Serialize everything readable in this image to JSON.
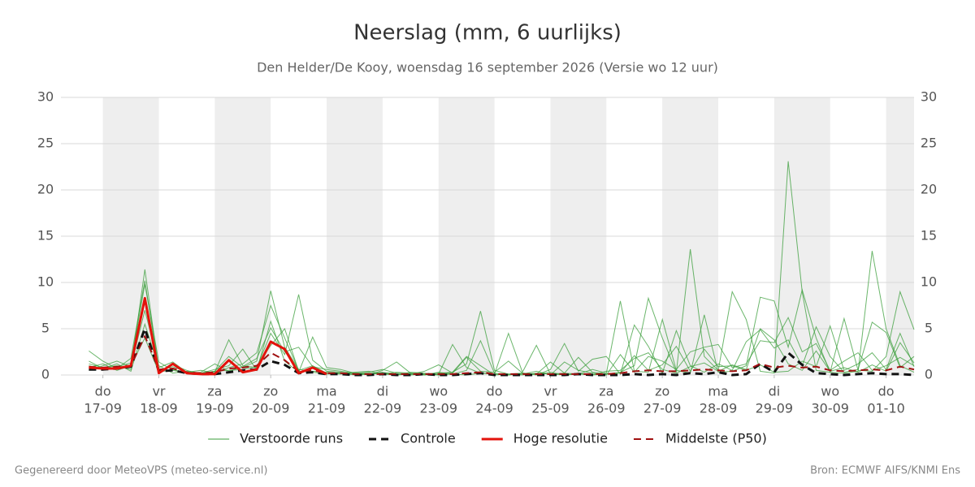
{
  "chart_data": {
    "type": "line",
    "title": "Neerslag (mm, 6 uurlijks)",
    "subtitle": "Den Helder/De Kooy, woensdag 16 september 2026 (Versie wo 12 uur)",
    "footer_left": "Gegenereerd door MeteoVPS (meteo-service.nl)",
    "footer_right": "Bron: ECMWF AIFS/KNMI Ens",
    "x": [
      -6,
      0,
      6,
      12,
      18,
      24,
      30,
      36,
      42,
      48,
      54,
      60,
      66,
      72,
      78,
      84,
      90,
      96,
      102,
      108,
      114,
      120,
      126,
      132,
      138,
      144,
      150,
      156,
      162,
      168,
      174,
      180,
      186,
      192,
      198,
      204,
      210,
      216,
      222,
      228,
      234,
      240,
      246,
      252,
      258,
      264,
      270,
      276,
      282,
      288,
      294,
      300,
      306,
      312,
      318,
      324,
      330,
      336,
      342,
      348
    ],
    "xlim": [
      -18,
      348
    ],
    "xticks": [
      {
        "value": 0,
        "label": "do"
      },
      {
        "value": 24,
        "label": "vr"
      },
      {
        "value": 48,
        "label": "za"
      },
      {
        "value": 72,
        "label": "zo"
      },
      {
        "value": 96,
        "label": "ma"
      },
      {
        "value": 120,
        "label": "di"
      },
      {
        "value": 144,
        "label": "wo"
      },
      {
        "value": 168,
        "label": "do"
      },
      {
        "value": 192,
        "label": "vr"
      },
      {
        "value": 216,
        "label": "za"
      },
      {
        "value": 240,
        "label": "zo"
      },
      {
        "value": 264,
        "label": "ma"
      },
      {
        "value": 288,
        "label": "di"
      },
      {
        "value": 312,
        "label": "wo"
      },
      {
        "value": 336,
        "label": "do"
      }
    ],
    "xtick_sublabels": [
      "17-09",
      "18-09",
      "19-09",
      "20-09",
      "21-09",
      "22-09",
      "23-09",
      "24-09",
      "25-09",
      "26-09",
      "27-09",
      "28-09",
      "29-09",
      "30-09",
      "01-10"
    ],
    "ylim": [
      0,
      30
    ],
    "yticks": [
      0,
      5,
      10,
      15,
      20,
      25,
      30
    ],
    "grid": true,
    "ensemble": {
      "name": "Verstoorde runs",
      "color": "#3a9e3a",
      "runs": [
        [
          1.2,
          0.8,
          1.0,
          0.6,
          11.4,
          0.5,
          0.9,
          0.3,
          0.2,
          0.4,
          2.0,
          0.8,
          1.5,
          9.1,
          3.0,
          0.6,
          0.4,
          0.3,
          0.2,
          0.2,
          0.1,
          0.3,
          0.1,
          0.0,
          0.1,
          0.0,
          0.3,
          1.2,
          6.9,
          0.5,
          0.1,
          0.0,
          0.2,
          0.1,
          0.0,
          0.2,
          0.0,
          0.1,
          0.3,
          1.0,
          8.3,
          4.0,
          0.3,
          13.6,
          2.0,
          0.5,
          9.0,
          6.0,
          0.4,
          0.2,
          23.1,
          9.0,
          0.5,
          0.3,
          0.2,
          0.4,
          13.4,
          5.0,
          1.0,
          0.3
        ],
        [
          2.6,
          1.5,
          0.7,
          1.8,
          10.2,
          0.4,
          1.1,
          0.5,
          0.1,
          0.3,
          3.8,
          1.0,
          0.8,
          4.5,
          2.2,
          8.7,
          1.6,
          0.4,
          0.3,
          0.1,
          0.2,
          0.1,
          0.3,
          0.2,
          0.0,
          0.1,
          3.3,
          0.8,
          0.2,
          0.1,
          4.5,
          0.3,
          3.2,
          0.1,
          0.2,
          0.1,
          0.6,
          0.2,
          8.0,
          0.4,
          0.3,
          6.0,
          0.5,
          0.2,
          6.5,
          0.3,
          0.4,
          1.0,
          8.4,
          8.0,
          3.0,
          9.2,
          4.0,
          0.3,
          6.1,
          0.5,
          0.4,
          2.0,
          9.0,
          4.9
        ],
        [
          0.5,
          1.0,
          1.5,
          0.9,
          7.0,
          1.0,
          0.2,
          0.4,
          0.2,
          0.6,
          1.0,
          2.8,
          0.5,
          5.8,
          1.5,
          0.3,
          4.1,
          0.8,
          0.6,
          0.2,
          0.0,
          0.5,
          1.4,
          0.2,
          0.1,
          0.2,
          0.3,
          2.0,
          1.0,
          0.0,
          0.1,
          0.2,
          0.0,
          0.6,
          3.4,
          0.4,
          1.7,
          2.0,
          0.1,
          5.4,
          3.1,
          0.2,
          4.8,
          1.0,
          0.3,
          1.2,
          0.5,
          3.6,
          4.9,
          2.9,
          3.8,
          1.0,
          5.2,
          2.0,
          0.3,
          0.6,
          5.7,
          4.6,
          0.8,
          2.0
        ],
        [
          1.5,
          0.7,
          1.2,
          0.4,
          5.5,
          0.8,
          1.4,
          0.3,
          0.5,
          0.2,
          0.8,
          1.2,
          2.4,
          7.5,
          4.0,
          0.5,
          1.0,
          0.2,
          0.1,
          0.3,
          0.4,
          0.1,
          0.0,
          0.3,
          0.2,
          0.0,
          0.1,
          0.5,
          3.7,
          0.2,
          0.0,
          0.1,
          0.4,
          0.0,
          1.4,
          0.5,
          0.2,
          0.0,
          2.2,
          0.3,
          2.0,
          1.5,
          0.6,
          2.5,
          3.0,
          3.3,
          0.8,
          1.2,
          3.7,
          3.5,
          6.2,
          2.5,
          3.4,
          0.5,
          1.5,
          2.4,
          0.5,
          1.0,
          1.9,
          1.0
        ],
        [
          0.8,
          1.2,
          0.5,
          1.0,
          4.0,
          0.3,
          0.6,
          0.2,
          0.1,
          0.4,
          0.5,
          0.6,
          0.9,
          3.2,
          5.0,
          0.4,
          0.3,
          0.1,
          0.2,
          0.0,
          0.1,
          0.2,
          0.0,
          0.1,
          0.0,
          0.3,
          0.1,
          0.0,
          0.2,
          0.1,
          0.0,
          0.2,
          0.1,
          0.3,
          0.0,
          0.1,
          0.0,
          0.4,
          0.5,
          1.8,
          2.4,
          0.6,
          0.2,
          0.9,
          1.3,
          0.4,
          1.1,
          0.6,
          5.0,
          3.8,
          1.2,
          0.5,
          2.6,
          0.4,
          0.8,
          0.3,
          1.1,
          0.4,
          3.5,
          1.3
        ],
        [
          1.0,
          0.6,
          0.9,
          1.3,
          9.8,
          1.4,
          0.5,
          0.2,
          0.3,
          1.2,
          0.4,
          0.9,
          1.8,
          5.1,
          2.5,
          3.0,
          0.9,
          0.6,
          0.4,
          0.2,
          0.3,
          0.6,
          0.2,
          0.1,
          0.4,
          1.1,
          0.2,
          1.9,
          0.4,
          0.3,
          1.5,
          0.2,
          0.1,
          1.4,
          0.2,
          1.9,
          0.3,
          0.1,
          0.2,
          2.1,
          0.5,
          1.1,
          3.1,
          0.4,
          2.8,
          0.9,
          1.0,
          0.5,
          1.1,
          0.3,
          0.4,
          1.5,
          0.9,
          5.3,
          0.5,
          1.2,
          2.4,
          0.6,
          4.5,
          0.9
        ]
      ]
    },
    "series": [
      {
        "name": "Controle",
        "color": "#111111",
        "style": "dashed",
        "width": 3,
        "values": [
          0.6,
          0.6,
          0.7,
          0.9,
          5.0,
          0.4,
          0.5,
          0.2,
          0.1,
          0.1,
          0.3,
          0.5,
          0.6,
          1.5,
          1.1,
          0.2,
          0.3,
          0.1,
          0.1,
          0.0,
          0.0,
          0.1,
          0.0,
          0.0,
          0.1,
          0.0,
          0.0,
          0.1,
          0.2,
          0.0,
          0.0,
          0.0,
          0.0,
          0.0,
          0.0,
          0.1,
          0.0,
          0.0,
          0.0,
          0.1,
          0.0,
          0.1,
          0.0,
          0.2,
          0.1,
          0.3,
          0.0,
          0.1,
          1.2,
          0.3,
          2.4,
          1.1,
          0.2,
          0.1,
          0.0,
          0.1,
          0.2,
          0.1,
          0.1,
          0.0
        ]
      },
      {
        "name": "Hoge resolutie",
        "color": "#e3120b",
        "style": "solid",
        "width": 3,
        "values": [
          0.8,
          0.7,
          0.7,
          1.0,
          8.3,
          0.2,
          1.2,
          0.2,
          0.1,
          0.1,
          1.6,
          0.3,
          0.6,
          3.6,
          2.8,
          0.2,
          0.8,
          0.1,
          null,
          null,
          null,
          null,
          null,
          null,
          null,
          null,
          null,
          null,
          null,
          null,
          null,
          null,
          null,
          null,
          null,
          null,
          null,
          null,
          null,
          null,
          null,
          null,
          null,
          null,
          null,
          null,
          null,
          null,
          null,
          null,
          null,
          null,
          null,
          null,
          null,
          null,
          null,
          null,
          null,
          null
        ]
      },
      {
        "name": "Middelste (P50)",
        "color": "#a01010",
        "style": "dashed",
        "width": 2,
        "values": [
          0.9,
          0.8,
          0.9,
          1.0,
          4.2,
          0.6,
          0.7,
          0.3,
          0.2,
          0.3,
          0.7,
          0.8,
          1.0,
          2.4,
          1.6,
          0.4,
          0.5,
          0.2,
          0.2,
          0.1,
          0.1,
          0.1,
          0.1,
          0.1,
          0.1,
          0.1,
          0.1,
          0.2,
          0.3,
          0.1,
          0.1,
          0.1,
          0.1,
          0.1,
          0.1,
          0.1,
          0.1,
          0.1,
          0.2,
          0.4,
          0.5,
          0.4,
          0.4,
          0.5,
          0.6,
          0.5,
          0.4,
          0.5,
          1.2,
          0.8,
          1.0,
          0.8,
          0.9,
          0.5,
          0.4,
          0.5,
          0.6,
          0.5,
          0.9,
          0.6
        ]
      }
    ]
  }
}
